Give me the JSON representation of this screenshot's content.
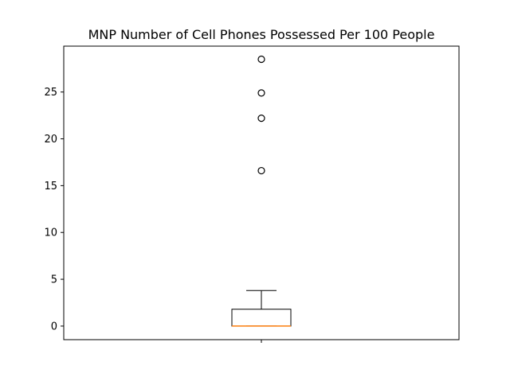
{
  "chart_data": {
    "type": "box",
    "title": "MNP Number of Cell Phones Possessed Per 100 People",
    "xlabel": "",
    "ylabel": "",
    "ylim": [
      -1.45,
      29.9
    ],
    "yticks": [
      0,
      5,
      10,
      15,
      20,
      25
    ],
    "xticks": [
      ""
    ],
    "grid": false,
    "legend": "none",
    "box": {
      "min": 0,
      "q1": 0,
      "median": 0,
      "q3": 1.8,
      "max": 3.8,
      "outliers": [
        16.6,
        22.2,
        24.9,
        28.5
      ]
    },
    "colors": {
      "box": "#000000",
      "median": "#ff7f0e",
      "outlier": "#000000"
    }
  }
}
